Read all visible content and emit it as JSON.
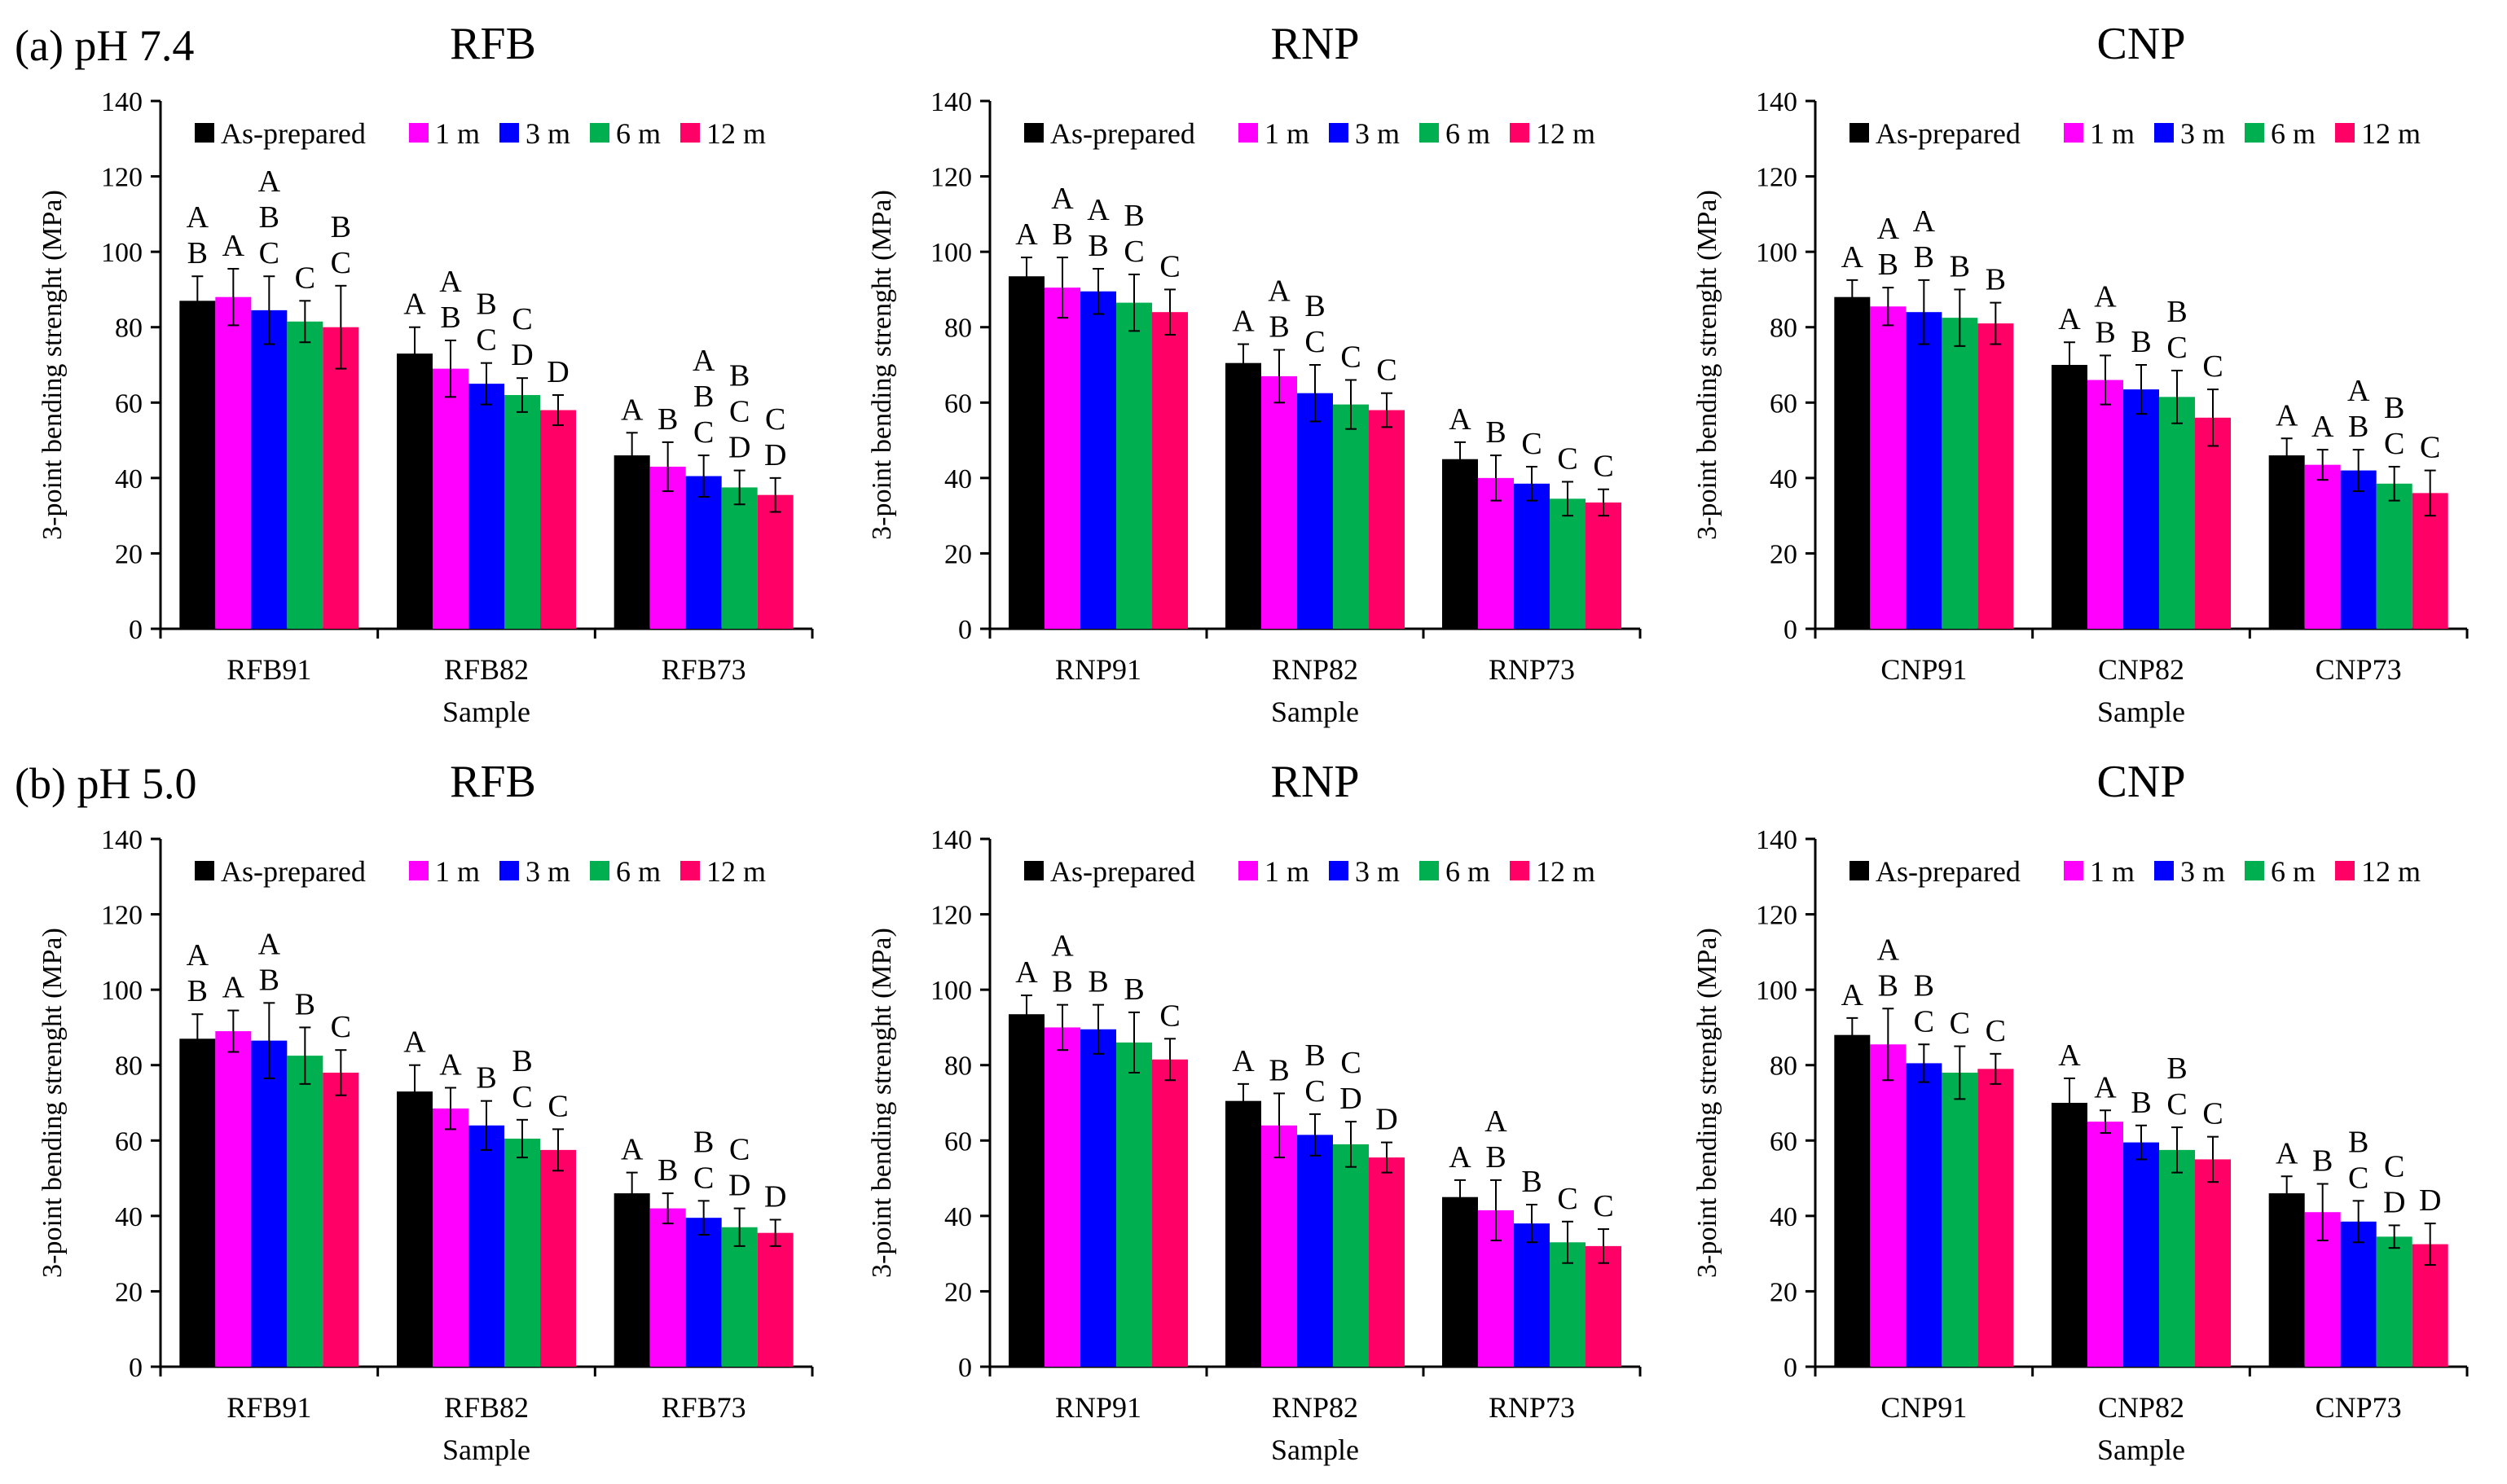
{
  "figure": {
    "row_labels": [
      "(a) pH 7.4",
      "(b) pH 5.0"
    ],
    "colors": {
      "As-prepared": "#000000",
      "1 m": "#ff00ff",
      "3 m": "#0000ff",
      "6 m": "#00b050",
      "12 m": "#ff0066"
    }
  },
  "chart_data": [
    {
      "type": "bar",
      "title": "RFB",
      "xlabel": "Sample",
      "ylabel": "3-point bending strenght (MPa)",
      "ylim": [
        0,
        140
      ],
      "yticks": [
        0,
        20,
        40,
        60,
        80,
        100,
        120,
        140
      ],
      "grid": false,
      "legend": "top",
      "categories": [
        "RFB91",
        "RFB82",
        "RFB73"
      ],
      "series": [
        {
          "name": "As-prepared",
          "values": [
            87,
            73,
            46
          ],
          "errors": [
            6.5,
            7,
            6
          ],
          "letters": [
            "A B",
            "A",
            "A"
          ]
        },
        {
          "name": "1 m",
          "values": [
            88,
            69,
            43
          ],
          "errors": [
            7.5,
            7.5,
            6.5
          ],
          "letters": [
            "A",
            "A B",
            "B"
          ]
        },
        {
          "name": "3 m",
          "values": [
            84.5,
            65,
            40.5
          ],
          "errors": [
            9,
            5.5,
            5.5
          ],
          "letters": [
            "A B C",
            "B C",
            "A B C"
          ]
        },
        {
          "name": "6 m",
          "values": [
            81.5,
            62,
            37.5
          ],
          "errors": [
            5.5,
            4.5,
            4.5
          ],
          "letters": [
            "C",
            "C D",
            "B C D"
          ]
        },
        {
          "name": "12 m",
          "values": [
            80,
            58,
            35.5
          ],
          "errors": [
            11,
            4,
            4.5
          ],
          "letters": [
            "B C",
            "D",
            "C D"
          ]
        }
      ]
    },
    {
      "type": "bar",
      "title": "RNP",
      "xlabel": "Sample",
      "ylabel": "3-point bending strenght (MPa)",
      "ylim": [
        0,
        140
      ],
      "yticks": [
        0,
        20,
        40,
        60,
        80,
        100,
        120,
        140
      ],
      "grid": false,
      "legend": "top",
      "categories": [
        "RNP91",
        "RNP82",
        "RNP73"
      ],
      "series": [
        {
          "name": "As-prepared",
          "values": [
            93.5,
            70.5,
            45
          ],
          "errors": [
            5,
            5,
            4.5
          ],
          "letters": [
            "A",
            "A",
            "A"
          ]
        },
        {
          "name": "1 m",
          "values": [
            90.5,
            67,
            40
          ],
          "errors": [
            8,
            7,
            6
          ],
          "letters": [
            "A B",
            "A B",
            "B"
          ]
        },
        {
          "name": "3 m",
          "values": [
            89.5,
            62.5,
            38.5
          ],
          "errors": [
            6,
            7.5,
            4.5
          ],
          "letters": [
            "A B",
            "B C",
            "C"
          ]
        },
        {
          "name": "6 m",
          "values": [
            86.5,
            59.5,
            34.5
          ],
          "errors": [
            7.5,
            6.5,
            4.5
          ],
          "letters": [
            "B C",
            "C",
            "C"
          ]
        },
        {
          "name": "12 m",
          "values": [
            84,
            58,
            33.5
          ],
          "errors": [
            6,
            4.5,
            3.5
          ],
          "letters": [
            "C",
            "C",
            "C"
          ]
        }
      ]
    },
    {
      "type": "bar",
      "title": "CNP",
      "xlabel": "Sample",
      "ylabel": "3-point bending strenght (MPa)",
      "ylim": [
        0,
        140
      ],
      "yticks": [
        0,
        20,
        40,
        60,
        80,
        100,
        120,
        140
      ],
      "grid": false,
      "legend": "top",
      "categories": [
        "CNP91",
        "CNP82",
        "CNP73"
      ],
      "series": [
        {
          "name": "As-prepared",
          "values": [
            88,
            70,
            46
          ],
          "errors": [
            4.5,
            6,
            4.5
          ],
          "letters": [
            "A",
            "A",
            "A"
          ]
        },
        {
          "name": "1 m",
          "values": [
            85.5,
            66,
            43.5
          ],
          "errors": [
            5,
            6.5,
            4
          ],
          "letters": [
            "A B",
            "A B",
            "A"
          ]
        },
        {
          "name": "3 m",
          "values": [
            84,
            63.5,
            42
          ],
          "errors": [
            8.5,
            6.5,
            5.5
          ],
          "letters": [
            "A B",
            "B",
            "A B"
          ]
        },
        {
          "name": "6 m",
          "values": [
            82.5,
            61.5,
            38.5
          ],
          "errors": [
            7.5,
            7,
            4.5
          ],
          "letters": [
            "B",
            "B C",
            "B C"
          ]
        },
        {
          "name": "12 m",
          "values": [
            81,
            56,
            36
          ],
          "errors": [
            5.5,
            7.5,
            6
          ],
          "letters": [
            "B",
            "C",
            "C"
          ]
        }
      ]
    },
    {
      "type": "bar",
      "title": "RFB",
      "xlabel": "Sample",
      "ylabel": "3-point bending strenght (MPa)",
      "ylim": [
        0,
        140
      ],
      "yticks": [
        0,
        20,
        40,
        60,
        80,
        100,
        120,
        140
      ],
      "grid": false,
      "legend": "top",
      "categories": [
        "RFB91",
        "RFB82",
        "RFB73"
      ],
      "series": [
        {
          "name": "As-prepared",
          "values": [
            87,
            73,
            46
          ],
          "errors": [
            6.5,
            7,
            5.5
          ],
          "letters": [
            "A B",
            "A",
            "A"
          ]
        },
        {
          "name": "1 m",
          "values": [
            89,
            68.5,
            42
          ],
          "errors": [
            5.5,
            5.5,
            4
          ],
          "letters": [
            "A",
            "A",
            "B"
          ]
        },
        {
          "name": "3 m",
          "values": [
            86.5,
            64,
            39.5
          ],
          "errors": [
            10,
            6.5,
            4.5
          ],
          "letters": [
            "A B",
            "B",
            "B C"
          ]
        },
        {
          "name": "6 m",
          "values": [
            82.5,
            60.5,
            37
          ],
          "errors": [
            7.5,
            5,
            5
          ],
          "letters": [
            "B",
            "B C",
            "C D"
          ]
        },
        {
          "name": "12 m",
          "values": [
            78,
            57.5,
            35.5
          ],
          "errors": [
            6,
            5.5,
            3.5
          ],
          "letters": [
            "C",
            "C",
            "D"
          ]
        }
      ]
    },
    {
      "type": "bar",
      "title": "RNP",
      "xlabel": "Sample",
      "ylabel": "3-point bending strenght (MPa)",
      "ylim": [
        0,
        140
      ],
      "yticks": [
        0,
        20,
        40,
        60,
        80,
        100,
        120,
        140
      ],
      "grid": false,
      "legend": "top",
      "categories": [
        "RNP91",
        "RNP82",
        "RNP73"
      ],
      "series": [
        {
          "name": "As-prepared",
          "values": [
            93.5,
            70.5,
            45
          ],
          "errors": [
            5,
            4.5,
            4.5
          ],
          "letters": [
            "A",
            "A",
            "A"
          ]
        },
        {
          "name": "1 m",
          "values": [
            90,
            64,
            41.5
          ],
          "errors": [
            6,
            8.5,
            8
          ],
          "letters": [
            "A B",
            "B",
            "A B"
          ]
        },
        {
          "name": "3 m",
          "values": [
            89.5,
            61.5,
            38
          ],
          "errors": [
            6.5,
            5.5,
            5
          ],
          "letters": [
            "B",
            "B C",
            "B"
          ]
        },
        {
          "name": "6 m",
          "values": [
            86,
            59,
            33
          ],
          "errors": [
            8,
            6,
            5.5
          ],
          "letters": [
            "B",
            "C D",
            "C"
          ]
        },
        {
          "name": "12 m",
          "values": [
            81.5,
            55.5,
            32
          ],
          "errors": [
            5.5,
            4,
            4.5
          ],
          "letters": [
            "C",
            "D",
            "C"
          ]
        }
      ]
    },
    {
      "type": "bar",
      "title": "CNP",
      "xlabel": "Sample",
      "ylabel": "3-point bending strenght (MPa)",
      "ylim": [
        0,
        140
      ],
      "yticks": [
        0,
        20,
        40,
        60,
        80,
        100,
        120,
        140
      ],
      "grid": false,
      "legend": "top",
      "categories": [
        "CNP91",
        "CNP82",
        "CNP73"
      ],
      "series": [
        {
          "name": "As-prepared",
          "values": [
            88,
            70,
            46
          ],
          "errors": [
            4.5,
            6.5,
            4.5
          ],
          "letters": [
            "A",
            "A",
            "A"
          ]
        },
        {
          "name": "1 m",
          "values": [
            85.5,
            65,
            41
          ],
          "errors": [
            9.5,
            3,
            7.5
          ],
          "letters": [
            "A B",
            "A",
            "B"
          ]
        },
        {
          "name": "3 m",
          "values": [
            80.5,
            59.5,
            38.5
          ],
          "errors": [
            5,
            4.5,
            5.5
          ],
          "letters": [
            "B C",
            "B",
            "B C"
          ]
        },
        {
          "name": "6 m",
          "values": [
            78,
            57.5,
            34.5
          ],
          "errors": [
            7,
            6,
            3
          ],
          "letters": [
            "C",
            "B C",
            "C D"
          ]
        },
        {
          "name": "12 m",
          "values": [
            79,
            55,
            32.5
          ],
          "errors": [
            4,
            6,
            5.5
          ],
          "letters": [
            "C",
            "C",
            "D"
          ]
        }
      ]
    }
  ]
}
